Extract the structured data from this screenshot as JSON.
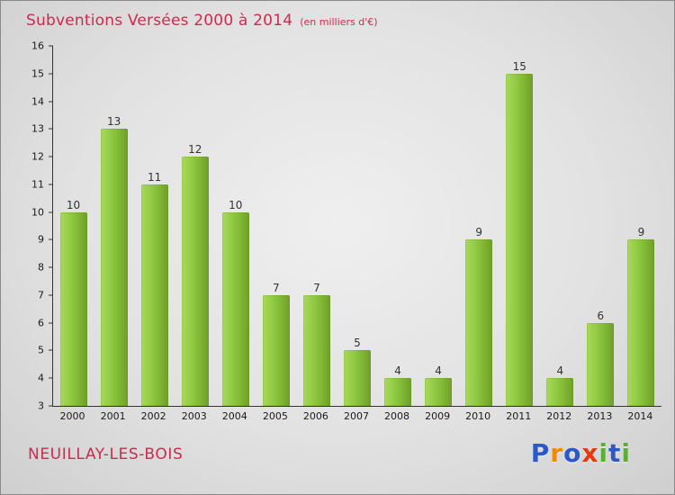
{
  "header": {
    "title": "Subventions Versées 2000 à 2014",
    "subtitle": "(en milliers d'€)",
    "title_color": "#cc2a4e"
  },
  "footer": {
    "place": "NEUILLAY-LES-BOIS",
    "logo": {
      "name": "Proxiti",
      "letters": [
        {
          "ch": "P",
          "color": "#2d59c8"
        },
        {
          "ch": "r",
          "color": "#f18a00"
        },
        {
          "ch": "o",
          "color": "#2d59c8"
        },
        {
          "ch": "x",
          "color": "#e8380d"
        },
        {
          "ch": "i",
          "color": "#59b22e"
        },
        {
          "ch": "t",
          "color": "#2d59c8"
        },
        {
          "ch": "i",
          "color": "#59b22e"
        }
      ]
    }
  },
  "chart_data": {
    "type": "bar",
    "title": "Subventions Versées 2000 à 2014",
    "subtitle": "(en milliers d'€)",
    "categories": [
      "2000",
      "2001",
      "2002",
      "2003",
      "2004",
      "2005",
      "2006",
      "2007",
      "2008",
      "2009",
      "2010",
      "2011",
      "2012",
      "2013",
      "2014"
    ],
    "values": [
      10,
      13,
      11,
      12,
      10,
      7,
      7,
      5,
      4,
      4,
      9,
      15,
      4,
      6,
      9
    ],
    "xlabel": "",
    "ylabel": "",
    "ylim": [
      3,
      16
    ],
    "ytick_step": 1,
    "grid": false,
    "legend": "none",
    "bar_color": "#8cc63f",
    "bar_gradient": [
      "#a9da5b",
      "#6f9f27"
    ]
  }
}
